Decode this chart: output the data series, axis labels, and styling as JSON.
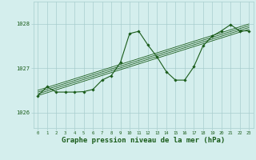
{
  "background_color": "#d4eeed",
  "grid_color": "#a8cece",
  "line_color": "#1a5c1a",
  "xlabel": "Graphe pression niveau de la mer (hPa)",
  "xlabel_fontsize": 6.5,
  "ylabel_ticks": [
    1026,
    1027,
    1028
  ],
  "xlim": [
    -0.5,
    23.5
  ],
  "ylim": [
    1025.65,
    1028.5
  ],
  "xticks": [
    0,
    1,
    2,
    3,
    4,
    5,
    6,
    7,
    8,
    9,
    10,
    11,
    12,
    13,
    14,
    15,
    16,
    17,
    18,
    19,
    20,
    21,
    22,
    23
  ],
  "trend_lines": [
    [
      1026.38,
      1026.445,
      1026.51,
      1026.575,
      1026.64,
      1026.705,
      1026.77,
      1026.835,
      1026.9,
      1026.965,
      1027.03,
      1027.095,
      1027.16,
      1027.225,
      1027.29,
      1027.355,
      1027.42,
      1027.485,
      1027.55,
      1027.615,
      1027.68,
      1027.745,
      1027.81,
      1027.875
    ],
    [
      1026.42,
      1026.485,
      1026.55,
      1026.615,
      1026.68,
      1026.745,
      1026.81,
      1026.875,
      1026.94,
      1027.005,
      1027.07,
      1027.135,
      1027.2,
      1027.265,
      1027.33,
      1027.395,
      1027.46,
      1027.525,
      1027.59,
      1027.655,
      1027.72,
      1027.785,
      1027.85,
      1027.915
    ],
    [
      1026.46,
      1026.525,
      1026.59,
      1026.655,
      1026.72,
      1026.785,
      1026.85,
      1026.915,
      1026.98,
      1027.045,
      1027.11,
      1027.175,
      1027.24,
      1027.305,
      1027.37,
      1027.435,
      1027.5,
      1027.565,
      1027.63,
      1027.695,
      1027.76,
      1027.825,
      1027.89,
      1027.955
    ],
    [
      1026.5,
      1026.565,
      1026.63,
      1026.695,
      1026.76,
      1026.825,
      1026.89,
      1026.955,
      1027.02,
      1027.085,
      1027.15,
      1027.215,
      1027.28,
      1027.345,
      1027.41,
      1027.475,
      1027.54,
      1027.605,
      1027.67,
      1027.735,
      1027.8,
      1027.865,
      1027.93,
      1027.995
    ]
  ],
  "jagged_x": [
    0,
    1,
    2,
    3,
    4,
    5,
    6,
    7,
    8,
    9,
    10,
    11,
    12,
    13,
    14,
    15,
    16,
    17,
    18,
    19,
    20,
    21,
    22,
    23
  ],
  "jagged_y": [
    1026.38,
    1026.58,
    1026.46,
    1026.46,
    1026.46,
    1026.47,
    1026.52,
    1026.73,
    1026.83,
    1027.13,
    1027.78,
    1027.83,
    1027.52,
    1027.25,
    1026.92,
    1026.73,
    1026.73,
    1027.03,
    1027.5,
    1027.72,
    1027.84,
    1027.98,
    1027.84,
    1027.84
  ]
}
